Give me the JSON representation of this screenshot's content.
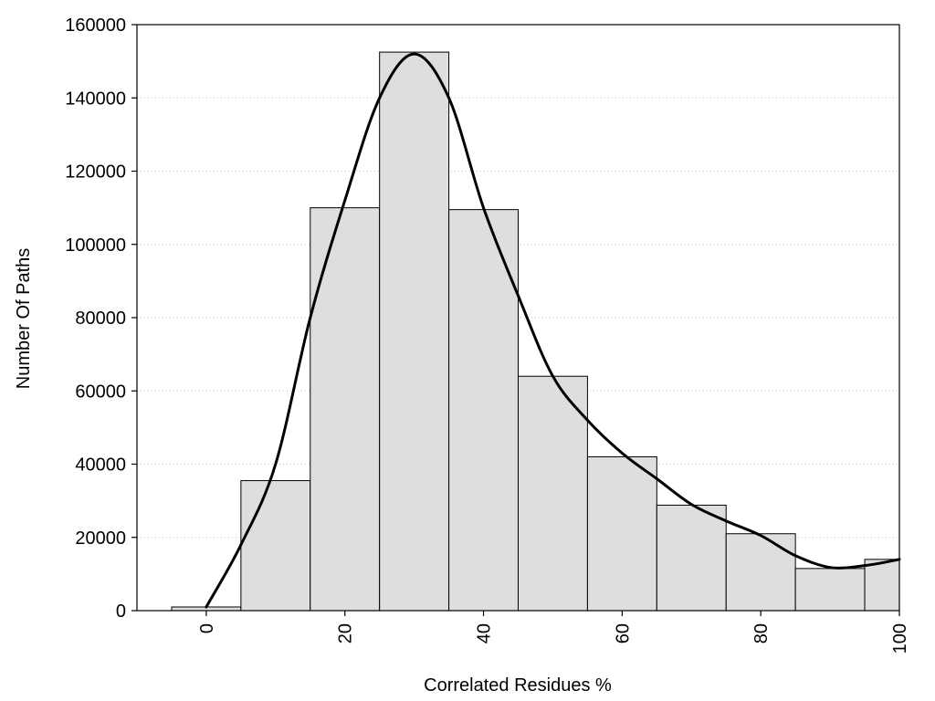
{
  "chart_data": {
    "type": "bar",
    "title": "",
    "xlabel": "Correlated Residues %",
    "ylabel": "Number Of Paths",
    "xlim": [
      -10,
      100
    ],
    "ylim": [
      0,
      160000
    ],
    "x_ticks": [
      "0",
      "20",
      "40",
      "60",
      "80",
      "100"
    ],
    "y_ticks": [
      "0",
      "20000",
      "40000",
      "60000",
      "80000",
      "100000",
      "120000",
      "140000",
      "160000"
    ],
    "grid": "horizontal dotted",
    "bin_width": 10,
    "bins": [
      {
        "center": 0,
        "value": 1000
      },
      {
        "center": 10,
        "value": 35500
      },
      {
        "center": 20,
        "value": 110000
      },
      {
        "center": 30,
        "value": 152500
      },
      {
        "center": 40,
        "value": 109500
      },
      {
        "center": 50,
        "value": 64000
      },
      {
        "center": 60,
        "value": 42000
      },
      {
        "center": 70,
        "value": 28800
      },
      {
        "center": 80,
        "value": 21000
      },
      {
        "center": 90,
        "value": 11500
      },
      {
        "center": 100,
        "value": 14000
      }
    ],
    "density_curve": {
      "x": [
        0,
        5,
        10,
        15,
        20,
        25,
        30,
        35,
        40,
        45,
        50,
        55,
        60,
        65,
        70,
        75,
        80,
        85,
        90,
        95,
        100
      ],
      "y": [
        1000,
        18000,
        40000,
        80000,
        112000,
        140000,
        152000,
        140000,
        110000,
        86000,
        64000,
        52000,
        43000,
        36000,
        29000,
        24500,
        20500,
        15000,
        11800,
        12300,
        14000
      ]
    },
    "colors": {
      "bar_fill": "#dedede",
      "bar_stroke": "#000000",
      "curve": "#000000",
      "grid": "#bdbdbd"
    }
  }
}
